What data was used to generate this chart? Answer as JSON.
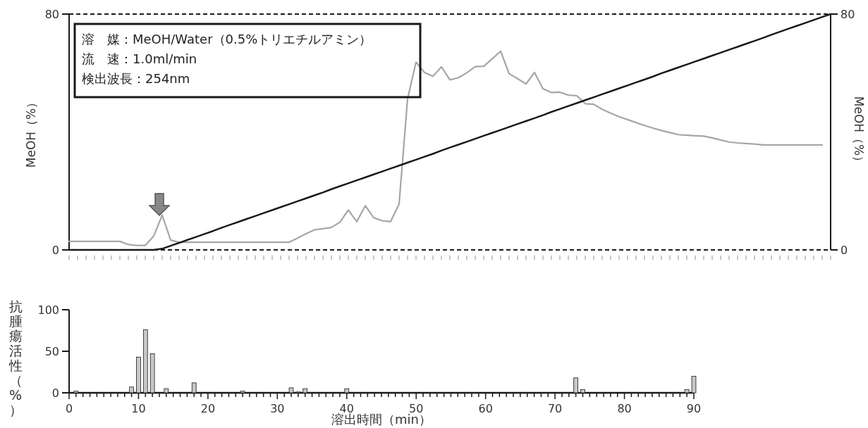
{
  "chart_data": [
    {
      "type": "line",
      "categories": [
        null,
        null,
        null,
        null,
        null,
        null,
        null,
        null,
        null,
        null,
        null,
        null,
        null,
        null,
        null,
        null,
        null,
        null,
        null,
        null,
        null,
        null,
        null,
        null,
        null,
        null,
        null,
        null,
        null,
        null,
        null,
        null,
        null,
        null,
        null,
        null,
        null,
        null,
        null,
        null,
        null,
        null,
        null,
        null,
        null,
        null,
        null,
        null,
        null,
        null,
        null,
        null,
        null,
        null,
        null,
        null,
        null,
        null,
        null,
        null,
        null,
        null,
        null,
        null,
        null,
        null,
        null,
        null,
        null,
        null,
        null,
        null,
        null,
        null,
        null,
        null,
        null,
        null,
        null,
        null,
        null,
        null,
        null,
        null,
        null,
        null,
        null,
        null,
        null,
        null,
        null
      ],
      "ylim": [
        0,
        80
      ],
      "yticks": [
        0,
        80
      ],
      "y2lim": [
        0,
        80
      ],
      "y2ticks": [
        0,
        80
      ],
      "ylabel": "MeOH（%）",
      "y2label": "MeOH（%）",
      "tick_labels": "y",
      "annotations": [
        "溶　媒：MeOH/Water（0.5%トリエチルアミン）",
        "流　速：1.0ml/min",
        "検出波長：254nm"
      ],
      "series": [
        {
          "color": "#a6a6a6",
          "values": [
            2.9,
            2.9,
            2.9,
            2.9,
            2.9,
            2.9,
            2.9,
            1.8,
            1.5,
            1.5,
            4.7,
            11.8,
            3.3,
            2.6,
            2.6,
            2.6,
            2.6,
            2.6,
            2.6,
            2.6,
            2.6,
            2.6,
            2.6,
            2.6,
            2.6,
            2.6,
            2.6,
            4.0,
            5.5,
            6.8,
            7.2,
            7.6,
            9.4,
            13.5,
            9.6,
            15.0,
            10.9,
            9.9,
            9.6,
            15.6,
            51.2,
            63.7,
            60.2,
            58.9,
            62.1,
            57.7,
            58.4,
            60.1,
            62.2,
            62.3,
            64.8,
            67.4,
            59.8,
            58.1,
            56.3,
            60.2,
            54.7,
            53.4,
            53.5,
            52.5,
            52.3,
            49.6,
            49.4,
            47.7,
            46.4,
            45.2,
            44.2,
            43.2,
            42.2,
            41.3,
            40.5,
            39.8,
            39.1,
            38.9,
            38.7,
            38.6,
            38.0,
            37.3,
            36.6,
            36.3,
            36.1,
            35.9,
            35.6,
            35.6,
            35.6,
            35.6,
            35.6,
            35.6,
            35.6,
            35.6,
            null
          ]
        },
        {
          "color": "#1a1a1a",
          "axis": "y2",
          "values": [
            0,
            0,
            0,
            0,
            0,
            0,
            0,
            0,
            0,
            0,
            0,
            0.4,
            1.4,
            2.4,
            3.4,
            4.4,
            5.4,
            6.4,
            7.5,
            8.5,
            9.5,
            10.5,
            11.5,
            12.5,
            13.5,
            14.5,
            15.5,
            16.5,
            17.5,
            18.5,
            19.5,
            20.6,
            21.6,
            22.6,
            23.6,
            24.6,
            25.6,
            26.6,
            27.6,
            28.6,
            29.6,
            30.6,
            31.6,
            32.6,
            33.7,
            34.7,
            35.7,
            36.7,
            37.7,
            38.7,
            39.7,
            40.7,
            41.7,
            42.7,
            43.7,
            44.7,
            45.7,
            46.8,
            47.8,
            48.8,
            49.8,
            50.8,
            51.8,
            52.8,
            53.8,
            54.8,
            55.8,
            56.8,
            57.8,
            58.8,
            59.9,
            60.9,
            61.9,
            62.9,
            63.9,
            64.9,
            65.9,
            66.9,
            67.9,
            68.9,
            69.9,
            70.9,
            71.9,
            73.0,
            74.0,
            75.0,
            76.0,
            77.0,
            78.0,
            79.0,
            80
          ]
        }
      ]
    },
    {
      "type": "bar",
      "xlim": [
        0,
        90
      ],
      "ylim": [
        0,
        100
      ],
      "yticks": [
        0,
        50,
        100
      ],
      "xlabel": "溶出時間（min）",
      "ylabel": "抗腫瘍活性（%）",
      "color": "#c8c8c8",
      "xticks": [
        0,
        {
          "value": 1,
          "label": null
        },
        {
          "value": 2,
          "label": null
        },
        {
          "value": 3,
          "label": null
        },
        {
          "value": 4,
          "label": null
        },
        {
          "value": 5,
          "label": null
        },
        {
          "value": 6,
          "label": null
        },
        {
          "value": 7,
          "label": null
        },
        {
          "value": 8,
          "label": null
        },
        {
          "value": 9,
          "label": null
        },
        10,
        {
          "value": 11,
          "label": null
        },
        {
          "value": 12,
          "label": null
        },
        {
          "value": 13,
          "label": null
        },
        {
          "value": 14,
          "label": null
        },
        {
          "value": 15,
          "label": null
        },
        {
          "value": 16,
          "label": null
        },
        {
          "value": 17,
          "label": null
        },
        {
          "value": 18,
          "label": null
        },
        {
          "value": 19,
          "label": null
        },
        20,
        {
          "value": 21,
          "label": null
        },
        {
          "value": 22,
          "label": null
        },
        {
          "value": 23,
          "label": null
        },
        {
          "value": 24,
          "label": null
        },
        {
          "value": 25,
          "label": null
        },
        {
          "value": 26,
          "label": null
        },
        {
          "value": 27,
          "label": null
        },
        {
          "value": 28,
          "label": null
        },
        {
          "value": 29,
          "label": null
        },
        30,
        {
          "value": 31,
          "label": null
        },
        {
          "value": 32,
          "label": null
        },
        {
          "value": 33,
          "label": null
        },
        {
          "value": 34,
          "label": null
        },
        {
          "value": 35,
          "label": null
        },
        {
          "value": 36,
          "label": null
        },
        {
          "value": 37,
          "label": null
        },
        {
          "value": 38,
          "label": null
        },
        {
          "value": 39,
          "label": null
        },
        40,
        {
          "value": 41,
          "label": null
        },
        {
          "value": 42,
          "label": null
        },
        {
          "value": 43,
          "label": null
        },
        {
          "value": 44,
          "label": null
        },
        {
          "value": 45,
          "label": null
        },
        {
          "value": 46,
          "label": null
        },
        {
          "value": 47,
          "label": null
        },
        {
          "value": 48,
          "label": null
        },
        {
          "value": 49,
          "label": null
        },
        50,
        {
          "value": 51,
          "label": null
        },
        {
          "value": 52,
          "label": null
        },
        {
          "value": 53,
          "label": null
        },
        {
          "value": 54,
          "label": null
        },
        {
          "value": 55,
          "label": null
        },
        {
          "value": 56,
          "label": null
        },
        {
          "value": 57,
          "label": null
        },
        {
          "value": 58,
          "label": null
        },
        {
          "value": 59,
          "label": null
        },
        60,
        {
          "value": 61,
          "label": null
        },
        {
          "value": 62,
          "label": null
        },
        {
          "value": 63,
          "label": null
        },
        {
          "value": 64,
          "label": null
        },
        {
          "value": 65,
          "label": null
        },
        {
          "value": 66,
          "label": null
        },
        {
          "value": 67,
          "label": null
        },
        {
          "value": 68,
          "label": null
        },
        {
          "value": 69,
          "label": null
        },
        70,
        {
          "value": 71,
          "label": null
        },
        {
          "value": 72,
          "label": null
        },
        {
          "value": 73,
          "label": null
        },
        {
          "value": 74,
          "label": null
        },
        {
          "value": 75,
          "label": null
        },
        {
          "value": 76,
          "label": null
        },
        {
          "value": 77,
          "label": null
        },
        {
          "value": 78,
          "label": null
        },
        {
          "value": 79,
          "label": null
        },
        80,
        {
          "value": 81,
          "label": null
        },
        {
          "value": 82,
          "label": null
        },
        {
          "value": 83,
          "label": null
        },
        {
          "value": 84,
          "label": null
        },
        {
          "value": 85,
          "label": null
        },
        {
          "value": 86,
          "label": null
        },
        {
          "value": 87,
          "label": null
        },
        {
          "value": 88,
          "label": null
        },
        {
          "value": 89,
          "label": null
        },
        90
      ],
      "x": [
        1,
        9,
        10,
        11,
        12,
        14,
        18,
        25,
        32,
        33,
        34,
        40,
        73,
        74,
        89,
        90
      ],
      "values": [
        2,
        7,
        43,
        76,
        47,
        5,
        12,
        2,
        6,
        1,
        5,
        5,
        18,
        4,
        4,
        20
      ]
    }
  ]
}
